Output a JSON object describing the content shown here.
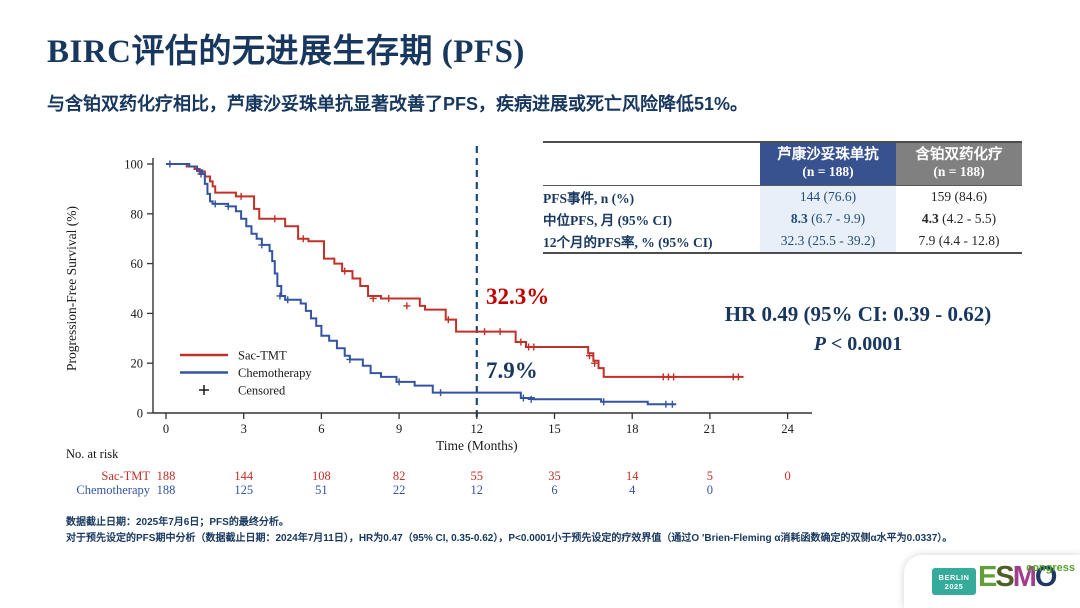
{
  "slide": {
    "title": "BIRC评估的无进展生存期 (PFS)",
    "subtitle": "与含铂双药化疗相比，芦康沙妥珠单抗显著改善了PFS，疾病进展或死亡风险降低51%。"
  },
  "chart_data": {
    "type": "line",
    "subtype": "kaplan-meier-step",
    "xlabel": "Time (Months)",
    "ylabel": "Progression-Free Survival (%)",
    "xlim": [
      0,
      25.5
    ],
    "x_ticks": [
      0,
      3,
      6,
      9,
      12,
      15,
      18,
      21,
      24
    ],
    "ylim": [
      0,
      100
    ],
    "y_ticks": [
      0,
      20,
      40,
      60,
      80,
      100
    ],
    "grid": "off",
    "reference_line_month": 12,
    "reference_line_color": "#1E4A77",
    "series": [
      {
        "name": "Sac-TMT",
        "color": "#C23128",
        "twelve_month_rate_label": "32.3%",
        "steps": [
          [
            0,
            100
          ],
          [
            0.8,
            99
          ],
          [
            1.1,
            98
          ],
          [
            1.3,
            97
          ],
          [
            1.5,
            95
          ],
          [
            1.7,
            93
          ],
          [
            1.8,
            91
          ],
          [
            1.9,
            88.5
          ],
          [
            2.7,
            87
          ],
          [
            3.4,
            82
          ],
          [
            3.6,
            78
          ],
          [
            4.6,
            75
          ],
          [
            5.1,
            70
          ],
          [
            5.5,
            69
          ],
          [
            6.1,
            62
          ],
          [
            6.5,
            60
          ],
          [
            6.8,
            57
          ],
          [
            7.2,
            54
          ],
          [
            7.5,
            51
          ],
          [
            7.8,
            47
          ],
          [
            8.3,
            46
          ],
          [
            9.8,
            43
          ],
          [
            10.0,
            41.5
          ],
          [
            10.8,
            37.5
          ],
          [
            11.2,
            32.7
          ],
          [
            13.5,
            28.5
          ],
          [
            13.9,
            26.5
          ],
          [
            16.3,
            24
          ],
          [
            16.5,
            21
          ],
          [
            16.7,
            18
          ],
          [
            16.9,
            14.5
          ],
          [
            22.3,
            14.5
          ]
        ],
        "censors": [
          [
            1.3,
            97
          ],
          [
            2.9,
            87
          ],
          [
            4.2,
            78
          ],
          [
            5.3,
            70
          ],
          [
            6.9,
            57
          ],
          [
            8.0,
            46
          ],
          [
            8.6,
            46
          ],
          [
            9.3,
            43
          ],
          [
            10.9,
            37.5
          ],
          [
            12.3,
            32.7
          ],
          [
            12.9,
            32.7
          ],
          [
            13.7,
            28.5
          ],
          [
            14.0,
            26.5
          ],
          [
            14.2,
            26.5
          ],
          [
            16.35,
            23
          ],
          [
            16.55,
            20
          ],
          [
            19.2,
            14.5
          ],
          [
            19.4,
            14.5
          ],
          [
            19.6,
            14.5
          ],
          [
            21.9,
            14.5
          ],
          [
            22.1,
            14.5
          ]
        ]
      },
      {
        "name": "Chemotherapy",
        "color": "#3353A4",
        "twelve_month_rate_label": "7.9%",
        "steps": [
          [
            0,
            100
          ],
          [
            0.9,
            99
          ],
          [
            1.2,
            97.5
          ],
          [
            1.4,
            96
          ],
          [
            1.5,
            92
          ],
          [
            1.6,
            88
          ],
          [
            1.7,
            85
          ],
          [
            1.8,
            84
          ],
          [
            2.4,
            83
          ],
          [
            2.7,
            81
          ],
          [
            2.9,
            78
          ],
          [
            3.1,
            75
          ],
          [
            3.3,
            72
          ],
          [
            3.5,
            70
          ],
          [
            3.7,
            67.5
          ],
          [
            4.0,
            65
          ],
          [
            4.1,
            61
          ],
          [
            4.2,
            56
          ],
          [
            4.3,
            51
          ],
          [
            4.45,
            47
          ],
          [
            4.6,
            45.5
          ],
          [
            5.2,
            44
          ],
          [
            5.4,
            41
          ],
          [
            5.6,
            38
          ],
          [
            5.8,
            35
          ],
          [
            6.0,
            31
          ],
          [
            6.3,
            29
          ],
          [
            6.6,
            26
          ],
          [
            6.9,
            23
          ],
          [
            7.1,
            21.5
          ],
          [
            7.6,
            19
          ],
          [
            7.9,
            16
          ],
          [
            8.3,
            14.5
          ],
          [
            8.9,
            12.5
          ],
          [
            9.6,
            11
          ],
          [
            10.3,
            8.2
          ],
          [
            13.7,
            6
          ],
          [
            14.2,
            5.5
          ],
          [
            16.8,
            4.5
          ],
          [
            18.6,
            3.5
          ],
          [
            19.7,
            3.5
          ]
        ],
        "censors": [
          [
            0.15,
            100
          ],
          [
            1.35,
            96
          ],
          [
            1.9,
            84
          ],
          [
            2.4,
            83
          ],
          [
            3.7,
            67.5
          ],
          [
            4.4,
            47
          ],
          [
            4.7,
            45.5
          ],
          [
            7.1,
            21.5
          ],
          [
            9.0,
            12.5
          ],
          [
            10.6,
            8.2
          ],
          [
            13.8,
            6
          ],
          [
            14.1,
            5.5
          ],
          [
            16.9,
            4.5
          ],
          [
            19.3,
            3.5
          ],
          [
            19.55,
            3.5
          ]
        ]
      }
    ],
    "legend": [
      {
        "label": "Sac-TMT",
        "marker": "line",
        "color": "#C23128"
      },
      {
        "label": "Chemotherapy",
        "marker": "line",
        "color": "#3353A4"
      },
      {
        "label": "Censored",
        "marker": "plus",
        "color": "#1a1a1a"
      }
    ]
  },
  "annotations": {
    "sac_rate": "32.3%",
    "chemo_rate": "7.9%",
    "hr_text": "HR 0.49 (95% CI: 0.39 - 0.62)",
    "p_italic": "P",
    "p_rest": " < 0.0001"
  },
  "table": {
    "col1_header": "芦康沙妥珠单抗",
    "col1_n": "(n = 188)",
    "col2_header": "含铂双药化疗",
    "col2_n": "(n = 188)",
    "rows": [
      {
        "label": "PFS事件, n (%)",
        "col1_b": "",
        "col1_t": "144 (76.6)",
        "col2_b": "",
        "col2_t": "159 (84.6)"
      },
      {
        "label": "中位PFS, 月 (95% CI)",
        "col1_b": "8.3",
        "col1_t": " (6.7 - 9.9)",
        "col2_b": "4.3",
        "col2_t": " (4.2 - 5.5)"
      },
      {
        "label": "12个月的PFS率, % (95% CI)",
        "col1_b": "",
        "col1_t": "32.3 (25.5 - 39.2)",
        "col2_b": "",
        "col2_t": "7.9 (4.4 - 12.8)"
      }
    ]
  },
  "at_risk": {
    "label": "No. at risk",
    "months": [
      0,
      3,
      6,
      9,
      12,
      15,
      18,
      21,
      24
    ],
    "rows": [
      {
        "name": "Sac-TMT",
        "color": "#C23128",
        "values": [
          "188",
          "144",
          "108",
          "82",
          "55",
          "35",
          "14",
          "5",
          "0"
        ]
      },
      {
        "name": "Chemotherapy",
        "color": "#3353A4",
        "values": [
          "188",
          "125",
          "51",
          "22",
          "12",
          "6",
          "4",
          "0"
        ]
      }
    ]
  },
  "footnotes": {
    "line1": "数据截止日期：2025年7月6日；PFS的最终分析。",
    "line2": "对于预先设定的PFS期中分析（数据截止日期：2024年7月11日），HR为0.47（95% CI, 0.35-0.62），P<0.0001小于预先设定的疗效界值（通过O 'Brien-Fleming α消耗函数确定的双侧α水平为0.0337）。"
  },
  "logo": {
    "badge_line1": "BERLIN",
    "badge_line2": "2025",
    "letters": [
      {
        "ch": "E",
        "color": "#61A036"
      },
      {
        "ch": "S",
        "color": "#4E5F26"
      },
      {
        "ch": "M",
        "color": "#A03D8F"
      },
      {
        "ch": "O",
        "color": "#1F3864"
      }
    ],
    "congress": "congress"
  }
}
